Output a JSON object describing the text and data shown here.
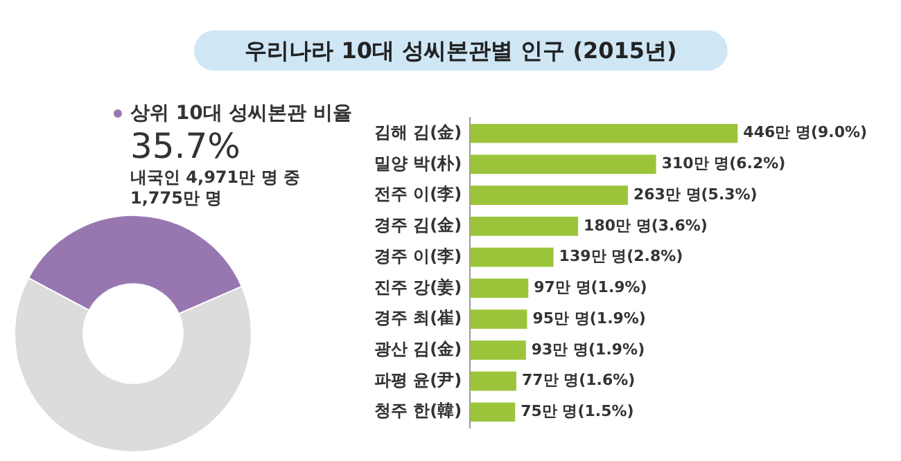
{
  "chart_data": [
    {
      "type": "donut",
      "title": "우리나라 10대 성씨본관별 인구 (2015년)",
      "categories": [
        "상위 10대 성씨본관 비율",
        null
      ],
      "values": [
        35.7,
        64.3
      ],
      "colors": [
        "#9877b1",
        "#dcdcdc"
      ],
      "value_labels": [
        "35.7%",
        null
      ],
      "legend": "top right",
      "annotations": [
        "내국인 4,971만 명 중 1,775만 명"
      ]
    },
    {
      "type": "bar",
      "orientation": "horizontal",
      "categories": [
        "김해 김(金)",
        "밀양 박(朴)",
        "전주 이(李)",
        "경주 김(金)",
        "경주 이(李)",
        "진주 강(姜)",
        "경주 최(崔)",
        "광산 김(金)",
        "파평 윤(尹)",
        "청주 한(韓)"
      ],
      "values": [
        446,
        310,
        263,
        180,
        139,
        97,
        95,
        93,
        77,
        75
      ],
      "color": "#9cc43a",
      "value_labels": [
        "446만 명(9.0%)",
        "310만 명(6.2%)",
        "263만 명(5.3%)",
        "180만 명(3.6%)",
        "139만 명(2.8%)",
        "97만 명(1.9%)",
        "95만 명(1.9%)",
        "93만 명(1.9%)",
        "77만 명(1.6%)",
        "75만 명(1.5%)"
      ],
      "tick_labels": "y"
    }
  ]
}
